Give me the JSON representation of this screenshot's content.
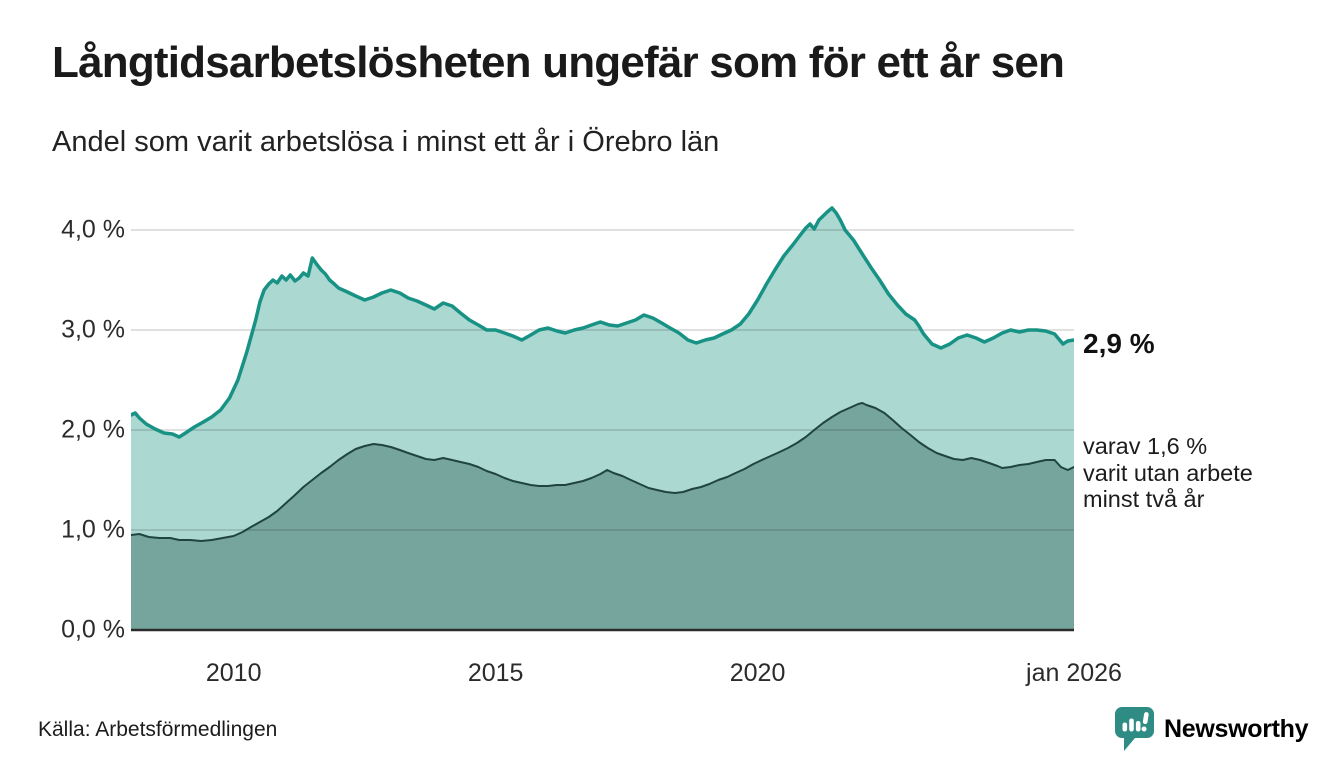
{
  "header": {
    "title": "Långtidsarbetslösheten ungefär som för ett år sen",
    "subtitle": "Andel som varit arbetslösa i minst ett år i Örebro län"
  },
  "annotations": {
    "end_value_label": "2,9 %",
    "secondary_label_lines": [
      "varav 1,6 %",
      "varit utan arbete",
      "minst två år"
    ]
  },
  "footer": {
    "source": "Källa: Arbetsförmedlingen",
    "brand": "Newsworthy",
    "brand_color": "#2f8c85"
  },
  "chart_data": {
    "type": "area",
    "title": "Långtidsarbetslösheten ungefär som för ett år sen",
    "subtitle": "Andel som varit arbetslösa i minst ett år i Örebro län",
    "xlabel": "",
    "ylabel": "",
    "x_range": [
      2008.04,
      2026.04
    ],
    "ylim": [
      0,
      4.34
    ],
    "grid": "horizontal",
    "gridline_values": [
      1,
      2,
      3,
      4
    ],
    "grid_color": "rgba(0,0,0,0.12)",
    "baseline_color": "#2b2b2b",
    "y_ticks": [
      {
        "label": "0,0 %",
        "value": 0
      },
      {
        "label": "1,0 %",
        "value": 1
      },
      {
        "label": "2,0 %",
        "value": 2
      },
      {
        "label": "3,0 %",
        "value": 3
      },
      {
        "label": "4,0 %",
        "value": 4
      }
    ],
    "x_ticks": [
      {
        "label": "2010",
        "year": 2010
      },
      {
        "label": "2015",
        "year": 2015
      },
      {
        "label": "2020",
        "year": 2020
      },
      {
        "label": "jan 2026",
        "year": 2026.04
      }
    ],
    "series": [
      {
        "name": "Andel arbetslösa minst ett år",
        "end_label": "2,9 %",
        "line_color": "#189284",
        "fill_color": "#abd8d1",
        "line_width": 3.5,
        "points": [
          [
            2008.04,
            2.15
          ],
          [
            2008.12,
            2.17
          ],
          [
            2008.2,
            2.12
          ],
          [
            2008.33,
            2.06
          ],
          [
            2008.5,
            2.01
          ],
          [
            2008.67,
            1.97
          ],
          [
            2008.83,
            1.96
          ],
          [
            2008.96,
            1.93
          ],
          [
            2009.08,
            1.97
          ],
          [
            2009.25,
            2.03
          ],
          [
            2009.42,
            2.08
          ],
          [
            2009.58,
            2.13
          ],
          [
            2009.75,
            2.2
          ],
          [
            2009.92,
            2.32
          ],
          [
            2010.08,
            2.5
          ],
          [
            2010.25,
            2.78
          ],
          [
            2010.42,
            3.1
          ],
          [
            2010.5,
            3.28
          ],
          [
            2010.58,
            3.4
          ],
          [
            2010.67,
            3.46
          ],
          [
            2010.75,
            3.5
          ],
          [
            2010.83,
            3.47
          ],
          [
            2010.92,
            3.54
          ],
          [
            2011.0,
            3.5
          ],
          [
            2011.08,
            3.55
          ],
          [
            2011.17,
            3.49
          ],
          [
            2011.25,
            3.52
          ],
          [
            2011.33,
            3.57
          ],
          [
            2011.42,
            3.54
          ],
          [
            2011.5,
            3.72
          ],
          [
            2011.58,
            3.66
          ],
          [
            2011.67,
            3.6
          ],
          [
            2011.75,
            3.56
          ],
          [
            2011.83,
            3.5
          ],
          [
            2011.92,
            3.46
          ],
          [
            2012.0,
            3.42
          ],
          [
            2012.17,
            3.38
          ],
          [
            2012.33,
            3.34
          ],
          [
            2012.5,
            3.3
          ],
          [
            2012.67,
            3.33
          ],
          [
            2012.83,
            3.37
          ],
          [
            2013.0,
            3.4
          ],
          [
            2013.17,
            3.37
          ],
          [
            2013.33,
            3.32
          ],
          [
            2013.5,
            3.29
          ],
          [
            2013.67,
            3.25
          ],
          [
            2013.83,
            3.21
          ],
          [
            2014.0,
            3.27
          ],
          [
            2014.17,
            3.24
          ],
          [
            2014.33,
            3.17
          ],
          [
            2014.5,
            3.1
          ],
          [
            2014.67,
            3.05
          ],
          [
            2014.83,
            3.0
          ],
          [
            2015.0,
            3.0
          ],
          [
            2015.17,
            2.97
          ],
          [
            2015.33,
            2.94
          ],
          [
            2015.5,
            2.9
          ],
          [
            2015.67,
            2.95
          ],
          [
            2015.83,
            3.0
          ],
          [
            2016.0,
            3.02
          ],
          [
            2016.17,
            2.99
          ],
          [
            2016.33,
            2.97
          ],
          [
            2016.5,
            3.0
          ],
          [
            2016.67,
            3.02
          ],
          [
            2016.83,
            3.05
          ],
          [
            2017.0,
            3.08
          ],
          [
            2017.17,
            3.05
          ],
          [
            2017.33,
            3.04
          ],
          [
            2017.5,
            3.07
          ],
          [
            2017.67,
            3.1
          ],
          [
            2017.83,
            3.15
          ],
          [
            2018.0,
            3.12
          ],
          [
            2018.17,
            3.07
          ],
          [
            2018.33,
            3.02
          ],
          [
            2018.5,
            2.97
          ],
          [
            2018.67,
            2.9
          ],
          [
            2018.83,
            2.87
          ],
          [
            2019.0,
            2.9
          ],
          [
            2019.17,
            2.92
          ],
          [
            2019.33,
            2.96
          ],
          [
            2019.5,
            3.0
          ],
          [
            2019.67,
            3.06
          ],
          [
            2019.83,
            3.16
          ],
          [
            2020.0,
            3.3
          ],
          [
            2020.17,
            3.46
          ],
          [
            2020.33,
            3.6
          ],
          [
            2020.5,
            3.74
          ],
          [
            2020.67,
            3.85
          ],
          [
            2020.83,
            3.96
          ],
          [
            2020.92,
            4.02
          ],
          [
            2021.0,
            4.06
          ],
          [
            2021.08,
            4.01
          ],
          [
            2021.17,
            4.1
          ],
          [
            2021.25,
            4.14
          ],
          [
            2021.33,
            4.18
          ],
          [
            2021.42,
            4.22
          ],
          [
            2021.5,
            4.17
          ],
          [
            2021.58,
            4.1
          ],
          [
            2021.67,
            4.0
          ],
          [
            2021.83,
            3.9
          ],
          [
            2022.0,
            3.76
          ],
          [
            2022.17,
            3.62
          ],
          [
            2022.33,
            3.5
          ],
          [
            2022.5,
            3.36
          ],
          [
            2022.67,
            3.25
          ],
          [
            2022.83,
            3.16
          ],
          [
            2023.0,
            3.1
          ],
          [
            2023.08,
            3.04
          ],
          [
            2023.17,
            2.96
          ],
          [
            2023.33,
            2.86
          ],
          [
            2023.5,
            2.82
          ],
          [
            2023.67,
            2.86
          ],
          [
            2023.83,
            2.92
          ],
          [
            2024.0,
            2.95
          ],
          [
            2024.17,
            2.92
          ],
          [
            2024.33,
            2.88
          ],
          [
            2024.5,
            2.92
          ],
          [
            2024.67,
            2.97
          ],
          [
            2024.83,
            3.0
          ],
          [
            2025.0,
            2.98
          ],
          [
            2025.17,
            3.0
          ],
          [
            2025.33,
            3.0
          ],
          [
            2025.5,
            2.99
          ],
          [
            2025.67,
            2.96
          ],
          [
            2025.83,
            2.86
          ],
          [
            2025.92,
            2.89
          ],
          [
            2026.04,
            2.9
          ]
        ]
      },
      {
        "name": "varav utan arbete minst två år",
        "end_label": "1,6 %",
        "line_color": "#20443f",
        "fill_color": "#76a59e",
        "line_width": 2,
        "points": [
          [
            2008.04,
            0.95
          ],
          [
            2008.2,
            0.96
          ],
          [
            2008.38,
            0.93
          ],
          [
            2008.58,
            0.92
          ],
          [
            2008.79,
            0.92
          ],
          [
            2008.96,
            0.9
          ],
          [
            2009.17,
            0.9
          ],
          [
            2009.38,
            0.89
          ],
          [
            2009.58,
            0.9
          ],
          [
            2009.79,
            0.92
          ],
          [
            2010.0,
            0.94
          ],
          [
            2010.17,
            0.98
          ],
          [
            2010.33,
            1.03
          ],
          [
            2010.5,
            1.08
          ],
          [
            2010.67,
            1.13
          ],
          [
            2010.83,
            1.19
          ],
          [
            2011.0,
            1.27
          ],
          [
            2011.17,
            1.35
          ],
          [
            2011.33,
            1.43
          ],
          [
            2011.5,
            1.5
          ],
          [
            2011.67,
            1.57
          ],
          [
            2011.83,
            1.63
          ],
          [
            2012.0,
            1.7
          ],
          [
            2012.17,
            1.76
          ],
          [
            2012.33,
            1.81
          ],
          [
            2012.5,
            1.84
          ],
          [
            2012.67,
            1.86
          ],
          [
            2012.83,
            1.85
          ],
          [
            2013.0,
            1.83
          ],
          [
            2013.17,
            1.8
          ],
          [
            2013.33,
            1.77
          ],
          [
            2013.5,
            1.74
          ],
          [
            2013.67,
            1.71
          ],
          [
            2013.83,
            1.7
          ],
          [
            2014.0,
            1.72
          ],
          [
            2014.17,
            1.7
          ],
          [
            2014.33,
            1.68
          ],
          [
            2014.5,
            1.66
          ],
          [
            2014.67,
            1.63
          ],
          [
            2014.83,
            1.59
          ],
          [
            2015.0,
            1.56
          ],
          [
            2015.17,
            1.52
          ],
          [
            2015.33,
            1.49
          ],
          [
            2015.5,
            1.47
          ],
          [
            2015.67,
            1.45
          ],
          [
            2015.83,
            1.44
          ],
          [
            2016.0,
            1.44
          ],
          [
            2016.17,
            1.45
          ],
          [
            2016.33,
            1.45
          ],
          [
            2016.5,
            1.47
          ],
          [
            2016.67,
            1.49
          ],
          [
            2016.83,
            1.52
          ],
          [
            2017.0,
            1.56
          ],
          [
            2017.13,
            1.6
          ],
          [
            2017.25,
            1.57
          ],
          [
            2017.42,
            1.54
          ],
          [
            2017.58,
            1.5
          ],
          [
            2017.75,
            1.46
          ],
          [
            2017.92,
            1.42
          ],
          [
            2018.08,
            1.4
          ],
          [
            2018.25,
            1.38
          ],
          [
            2018.42,
            1.37
          ],
          [
            2018.58,
            1.38
          ],
          [
            2018.75,
            1.41
          ],
          [
            2018.92,
            1.43
          ],
          [
            2019.08,
            1.46
          ],
          [
            2019.25,
            1.5
          ],
          [
            2019.42,
            1.53
          ],
          [
            2019.58,
            1.57
          ],
          [
            2019.75,
            1.61
          ],
          [
            2019.92,
            1.66
          ],
          [
            2020.08,
            1.7
          ],
          [
            2020.25,
            1.74
          ],
          [
            2020.42,
            1.78
          ],
          [
            2020.58,
            1.82
          ],
          [
            2020.75,
            1.87
          ],
          [
            2020.92,
            1.93
          ],
          [
            2021.08,
            2.0
          ],
          [
            2021.25,
            2.07
          ],
          [
            2021.42,
            2.13
          ],
          [
            2021.58,
            2.18
          ],
          [
            2021.75,
            2.22
          ],
          [
            2021.92,
            2.26
          ],
          [
            2022.0,
            2.27
          ],
          [
            2022.08,
            2.25
          ],
          [
            2022.25,
            2.22
          ],
          [
            2022.42,
            2.17
          ],
          [
            2022.58,
            2.1
          ],
          [
            2022.75,
            2.02
          ],
          [
            2022.92,
            1.95
          ],
          [
            2023.08,
            1.88
          ],
          [
            2023.25,
            1.82
          ],
          [
            2023.42,
            1.77
          ],
          [
            2023.58,
            1.74
          ],
          [
            2023.75,
            1.71
          ],
          [
            2023.92,
            1.7
          ],
          [
            2024.08,
            1.72
          ],
          [
            2024.25,
            1.7
          ],
          [
            2024.42,
            1.67
          ],
          [
            2024.58,
            1.64
          ],
          [
            2024.67,
            1.62
          ],
          [
            2024.83,
            1.63
          ],
          [
            2025.0,
            1.65
          ],
          [
            2025.17,
            1.66
          ],
          [
            2025.33,
            1.68
          ],
          [
            2025.5,
            1.7
          ],
          [
            2025.67,
            1.7
          ],
          [
            2025.79,
            1.63
          ],
          [
            2025.92,
            1.6
          ],
          [
            2026.04,
            1.63
          ]
        ]
      }
    ]
  }
}
